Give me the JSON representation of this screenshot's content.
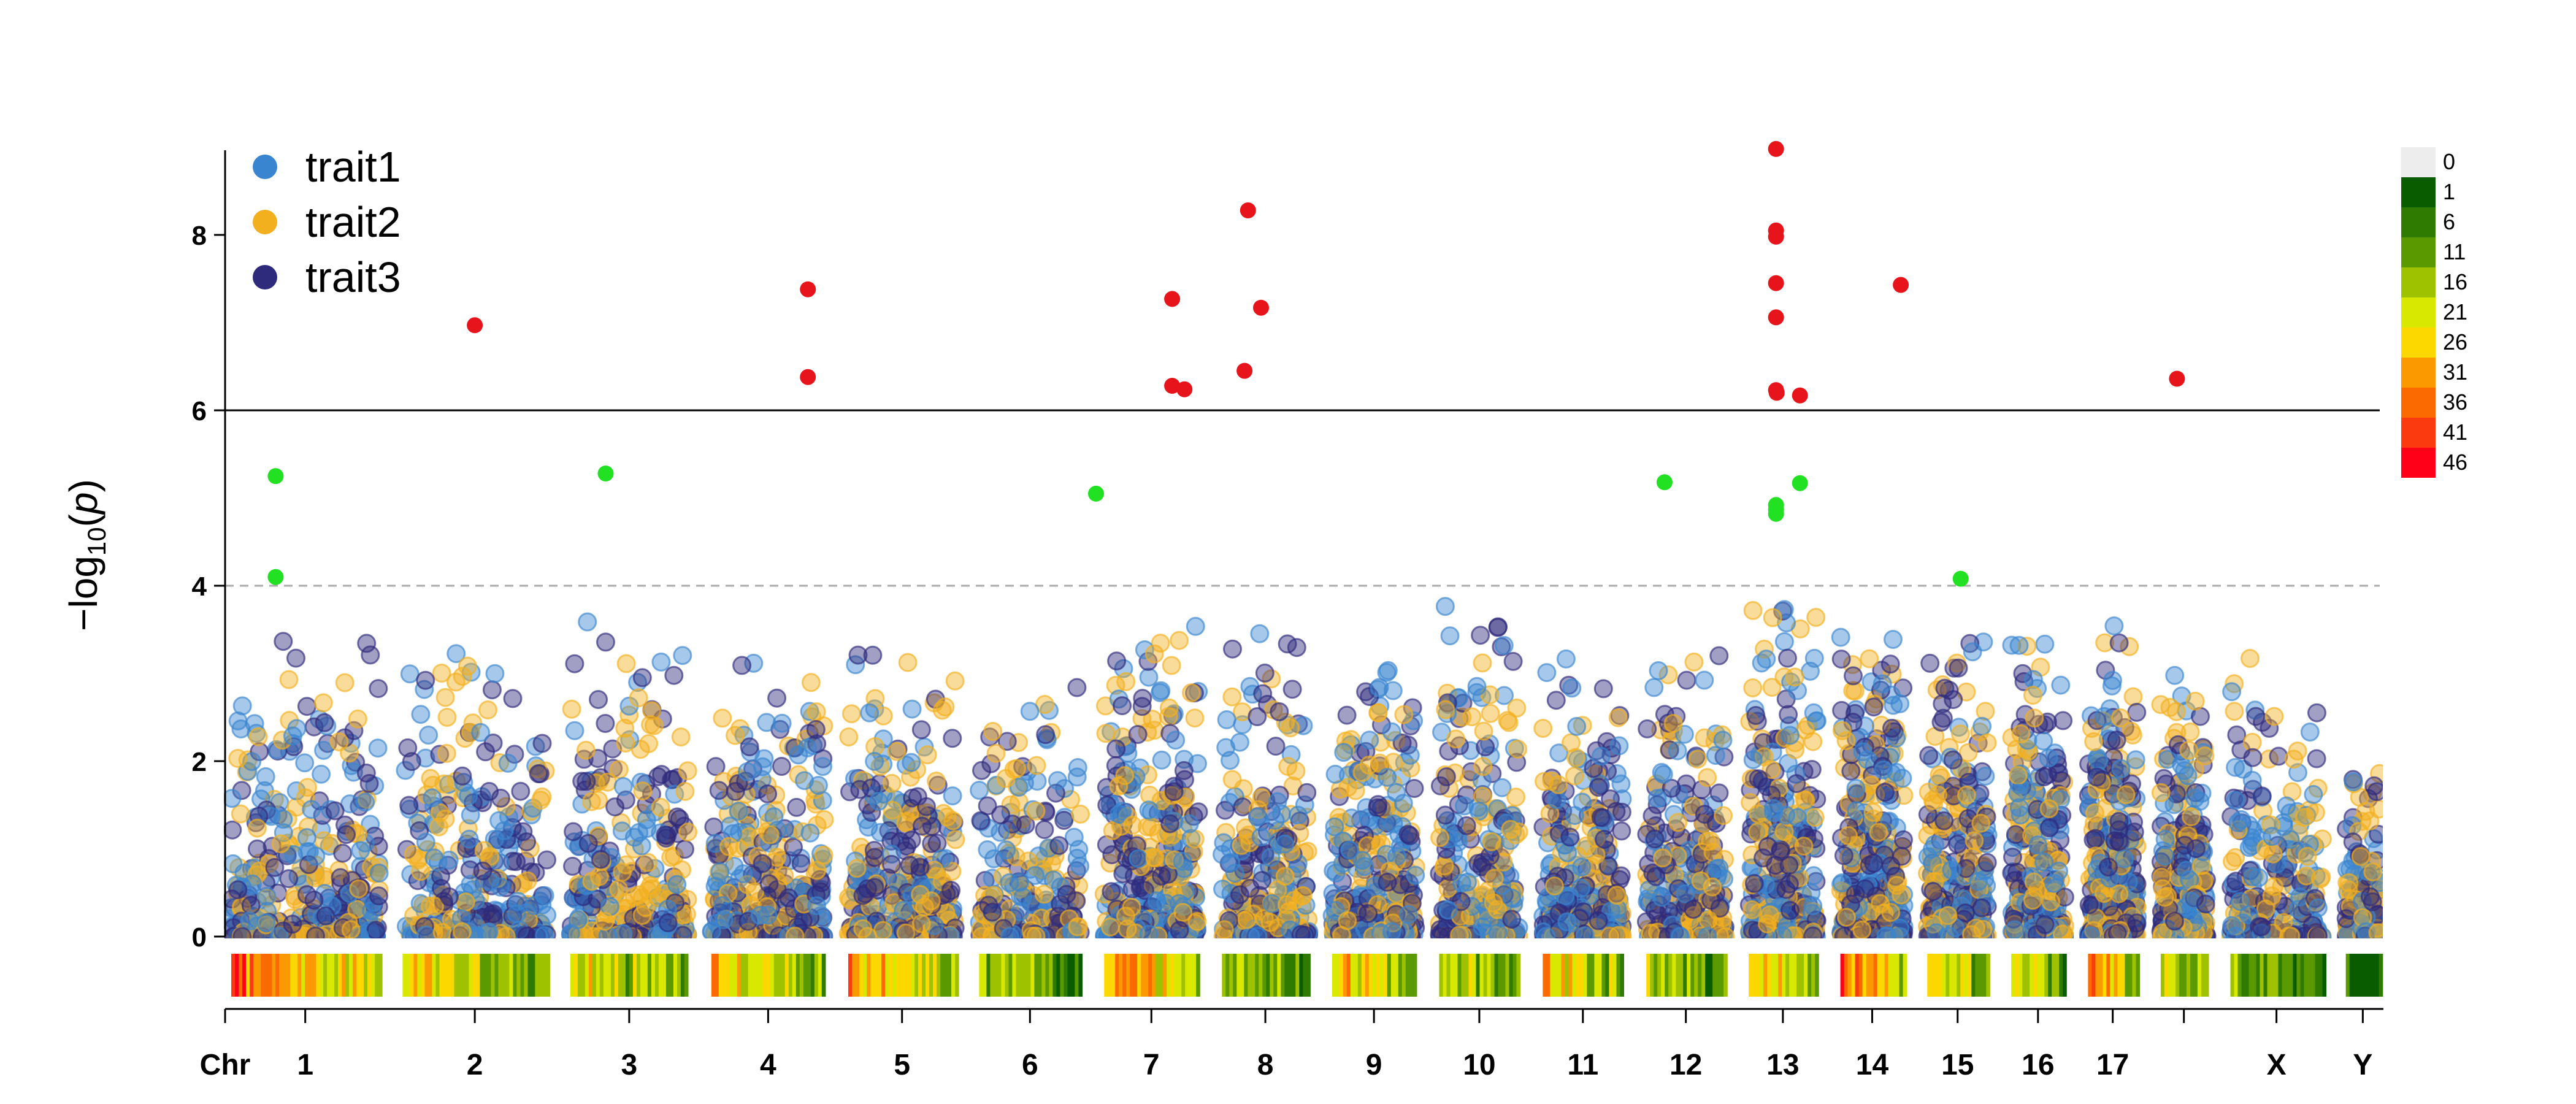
{
  "chart_data": {
    "type": "scatter",
    "subtype": "multi-trait manhattan plot with SNP density strip",
    "ylabel": "-log10(p)",
    "ylabel_parts": {
      "prefix": "−log",
      "sub": "10",
      "var": "p"
    },
    "xaxis_title": "Chr",
    "ylim": [
      0,
      9
    ],
    "yticks": [
      0,
      2,
      4,
      6,
      8
    ],
    "thresholds": [
      {
        "value": 6,
        "style": "solid",
        "color": "#000000"
      },
      {
        "value": 4,
        "style": "dashed",
        "color": "#aaaaaa"
      }
    ],
    "chromosomes": [
      {
        "label": "1",
        "length": 249,
        "peak": 2.6,
        "density": 0.78
      },
      {
        "label": "2",
        "length": 243,
        "peak": 2.9,
        "density": 0.55
      },
      {
        "label": "3",
        "length": 198,
        "peak": 2.8,
        "density": 0.5
      },
      {
        "label": "4",
        "length": 191,
        "peak": 2.4,
        "density": 0.6
      },
      {
        "label": "5",
        "length": 181,
        "peak": 2.6,
        "density": 0.7
      },
      {
        "label": "6",
        "length": 171,
        "peak": 2.3,
        "density": 0.35
      },
      {
        "label": "7",
        "length": 159,
        "peak": 2.9,
        "density": 0.72
      },
      {
        "label": "8",
        "length": 146,
        "peak": 2.7,
        "density": 0.45
      },
      {
        "label": "9",
        "length": 141,
        "peak": 2.6,
        "density": 0.65
      },
      {
        "label": "10",
        "length": 135,
        "peak": 2.9,
        "density": 0.45
      },
      {
        "label": "11",
        "length": 135,
        "peak": 2.5,
        "density": 0.6
      },
      {
        "label": "12",
        "length": 133,
        "peak": 2.5,
        "density": 0.4
      },
      {
        "label": "13",
        "length": 115,
        "peak": 3.0,
        "density": 0.62
      },
      {
        "label": "14",
        "length": 107,
        "peak": 2.7,
        "density": 0.8
      },
      {
        "label": "15",
        "length": 102,
        "peak": 2.6,
        "density": 0.55
      },
      {
        "label": "16",
        "length": 90,
        "peak": 2.6,
        "density": 0.5
      },
      {
        "label": "17",
        "length": 83,
        "peak": 2.8,
        "density": 0.7
      },
      {
        "label": "",
        "length": 78,
        "peak": 2.3,
        "density": 0.52
      },
      {
        "label": "X",
        "length": 155,
        "peak": 2.5,
        "density": 0.35
      },
      {
        "label": "Y",
        "length": 57,
        "peak": 1.5,
        "density": 0.1
      }
    ],
    "highlight_points": [
      {
        "chr": "1",
        "pos": 0.3,
        "y": 5.25,
        "class": "suggestive"
      },
      {
        "chr": "1",
        "pos": 0.3,
        "y": 4.1,
        "class": "suggestive"
      },
      {
        "chr": "2",
        "pos": 0.5,
        "y": 6.97,
        "class": "significant"
      },
      {
        "chr": "3",
        "pos": 0.3,
        "y": 5.28,
        "class": "suggestive"
      },
      {
        "chr": "4",
        "pos": 0.85,
        "y": 7.38,
        "class": "significant"
      },
      {
        "chr": "4",
        "pos": 0.85,
        "y": 6.38,
        "class": "significant"
      },
      {
        "chr": "6",
        "pos": 1.15,
        "y": 5.05,
        "class": "suggestive"
      },
      {
        "chr": "7",
        "pos": 0.72,
        "y": 7.27,
        "class": "significant"
      },
      {
        "chr": "7",
        "pos": 0.72,
        "y": 6.28,
        "class": "significant"
      },
      {
        "chr": "7",
        "pos": 0.85,
        "y": 6.24,
        "class": "significant"
      },
      {
        "chr": "8",
        "pos": 0.3,
        "y": 8.28,
        "class": "significant"
      },
      {
        "chr": "8",
        "pos": 0.26,
        "y": 6.45,
        "class": "significant"
      },
      {
        "chr": "8",
        "pos": 0.45,
        "y": 7.17,
        "class": "significant"
      },
      {
        "chr": "12",
        "pos": 0.23,
        "y": 5.18,
        "class": "suggestive"
      },
      {
        "chr": "13",
        "pos": 0.4,
        "y": 8.98,
        "class": "significant"
      },
      {
        "chr": "13",
        "pos": 0.4,
        "y": 8.05,
        "class": "significant"
      },
      {
        "chr": "13",
        "pos": 0.4,
        "y": 7.98,
        "class": "significant"
      },
      {
        "chr": "13",
        "pos": 0.4,
        "y": 7.45,
        "class": "significant"
      },
      {
        "chr": "13",
        "pos": 0.4,
        "y": 7.06,
        "class": "significant"
      },
      {
        "chr": "13",
        "pos": 0.4,
        "y": 6.23,
        "class": "significant"
      },
      {
        "chr": "13",
        "pos": 0.41,
        "y": 6.2,
        "class": "significant"
      },
      {
        "chr": "13",
        "pos": 0.75,
        "y": 6.17,
        "class": "significant"
      },
      {
        "chr": "13",
        "pos": 0.4,
        "y": 4.92,
        "class": "suggestive"
      },
      {
        "chr": "13",
        "pos": 0.4,
        "y": 4.87,
        "class": "suggestive"
      },
      {
        "chr": "13",
        "pos": 0.4,
        "y": 4.82,
        "class": "suggestive"
      },
      {
        "chr": "13",
        "pos": 0.75,
        "y": 5.17,
        "class": "suggestive"
      },
      {
        "chr": "14",
        "pos": 0.95,
        "y": 7.43,
        "class": "significant"
      },
      {
        "chr": "15",
        "pos": 0.55,
        "y": 4.08,
        "class": "suggestive"
      },
      {
        "chr": "",
        "pos": 0.35,
        "y": 6.36,
        "class": "significant"
      }
    ],
    "highlight_colors": {
      "significant": "#e8141c",
      "suggestive": "#22e022"
    },
    "legend": [
      {
        "name": "trait1",
        "color": "#3a85d0"
      },
      {
        "name": "trait2",
        "color": "#f2b01e"
      },
      {
        "name": "trait3",
        "color": "#2e2a7c"
      }
    ],
    "density_legend": {
      "labels": [
        "0",
        "1",
        "6",
        "11",
        "16",
        "21",
        "26",
        "31",
        "36",
        "41",
        "46"
      ],
      "colors": [
        "#ededed",
        "#0a5c00",
        "#2f7a00",
        "#5a9a00",
        "#9ec200",
        "#d8e800",
        "#fdd800",
        "#fb9a00",
        "#fb6a00",
        "#fb3a10",
        "#ff0018"
      ]
    },
    "background_point_count": 6500
  }
}
